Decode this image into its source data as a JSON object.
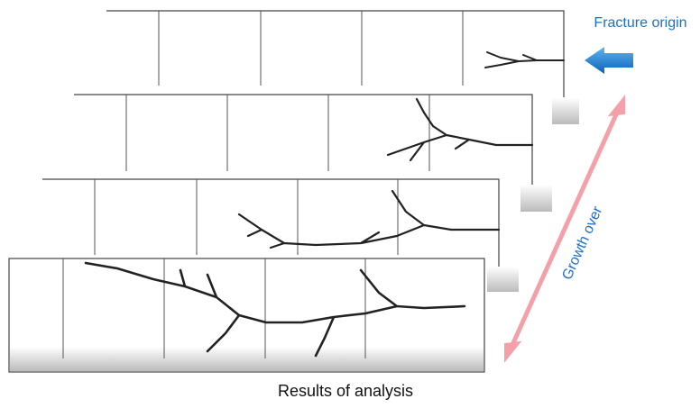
{
  "labels": {
    "fracture_origin": "Fracture origin",
    "growth": "Growth over",
    "caption": "Results of analysis"
  }
}
